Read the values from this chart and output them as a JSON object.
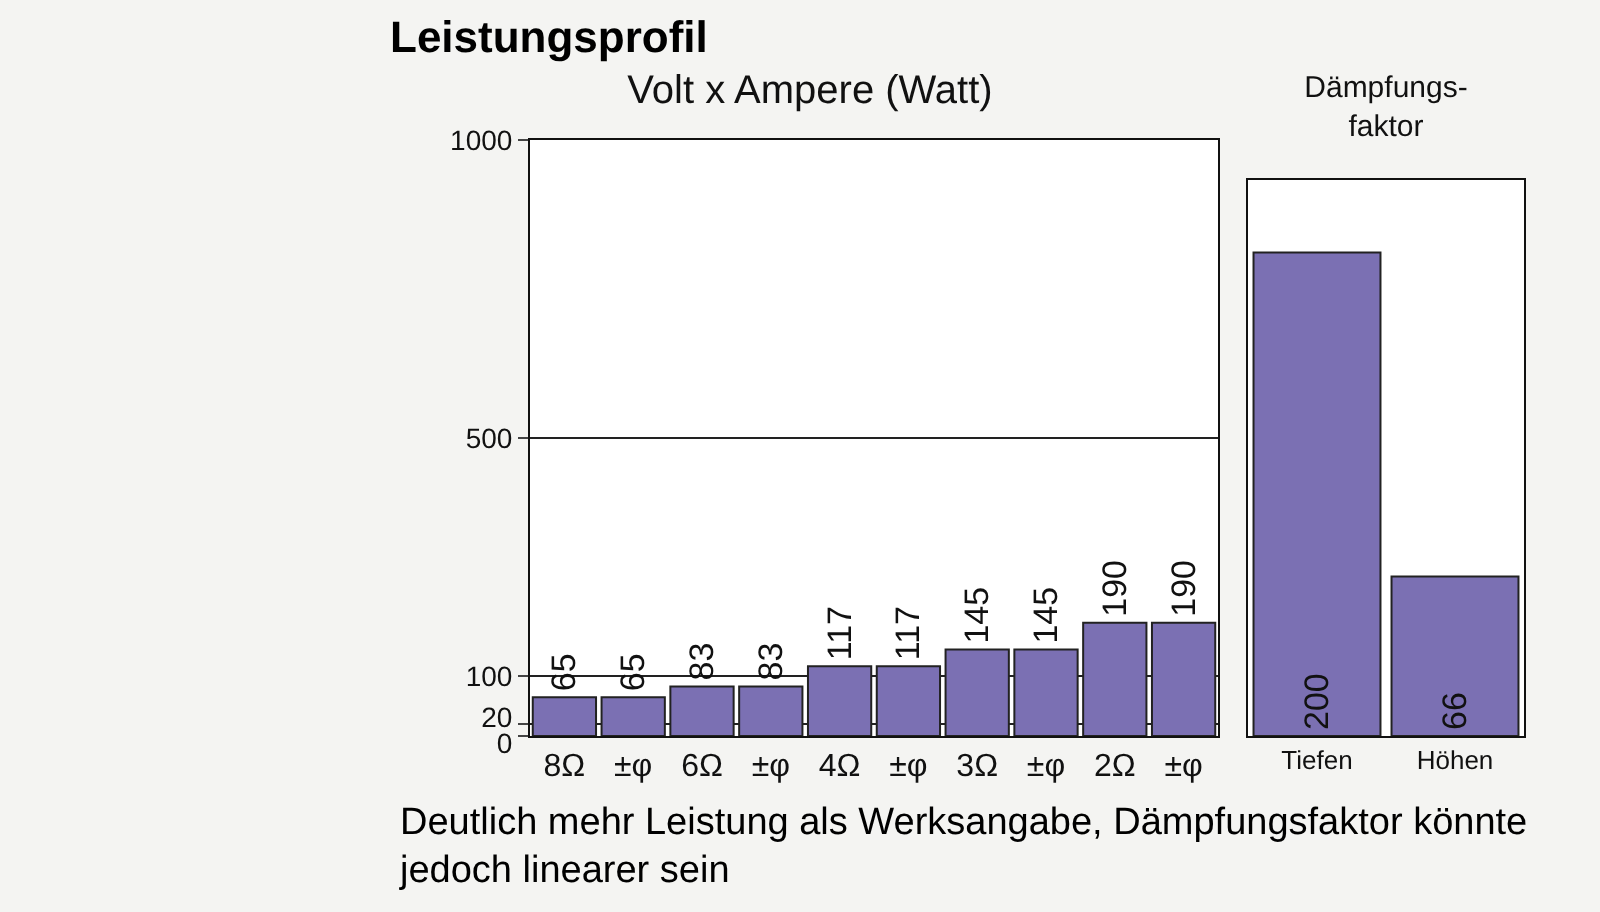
{
  "chart_data": [
    {
      "type": "bar",
      "title": "Leistungsprofil",
      "subtitle": "Volt x Ampere (Watt)",
      "categories": [
        "8Ω",
        "±φ",
        "6Ω",
        "±φ",
        "4Ω",
        "±φ",
        "3Ω",
        "±φ",
        "2Ω",
        "±φ"
      ],
      "values": [
        65,
        65,
        83,
        83,
        117,
        117,
        145,
        145,
        190,
        190
      ],
      "color": "#7b70b3",
      "ylim": [
        0,
        1000
      ],
      "yticks": [
        0,
        20,
        100,
        500,
        1000
      ],
      "grid": "y",
      "data_labels": true,
      "annotations": [
        "Deutlich mehr Leistung als Werksangabe, Dämpfungsfaktor könnte jedoch linearer sein"
      ]
    },
    {
      "type": "bar",
      "title": "Dämpfungs-\nfaktor",
      "categories": [
        "Tiefen",
        "Höhen"
      ],
      "values": [
        200,
        66
      ],
      "color": "#7b70b3",
      "data_labels": true,
      "tick_labels": "x"
    }
  ]
}
